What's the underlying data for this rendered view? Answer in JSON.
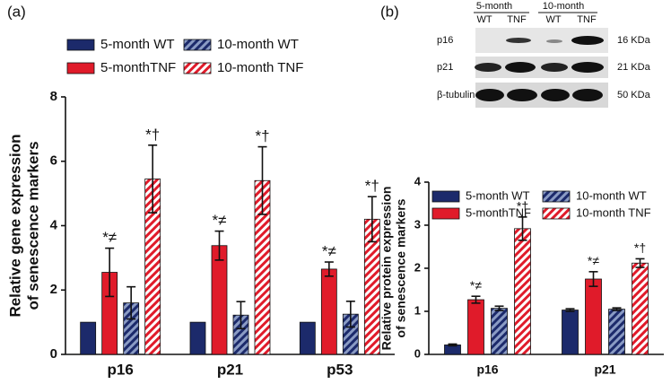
{
  "panel_labels": [
    "(a)",
    "(b)"
  ],
  "blot": {
    "groups": [
      "5-month",
      "10-month"
    ],
    "lanes": [
      "WT",
      "TNF",
      "WT",
      "TNF"
    ],
    "rows": [
      "p16",
      "p21",
      "β-tubulin"
    ],
    "sizes": [
      "16 KDa",
      "21 KDa",
      "50 KDa"
    ]
  },
  "chart_data": [
    {
      "type": "bar",
      "ylabel": [
        "Relative gene expression",
        "of senescence markers"
      ],
      "categories": [
        "p16",
        "p21",
        "p53"
      ],
      "ylim": [
        0,
        8
      ],
      "yticks": [
        0,
        2,
        4,
        6,
        8
      ],
      "series": [
        {
          "name": "5-month WT",
          "color": "#1c2a6b",
          "hatch": false,
          "values": [
            1,
            1,
            1
          ]
        },
        {
          "name": "5-monthTNF",
          "color": "#e01b2a",
          "hatch": false,
          "values": [
            2.55,
            3.38,
            2.65
          ],
          "errors": [
            0.75,
            0.45,
            0.22
          ],
          "annotations": [
            "*≠",
            "*≠",
            "*≠"
          ]
        },
        {
          "name": "10-month WT",
          "color": "#1c2a6b",
          "hatch": true,
          "values": [
            1.6,
            1.22,
            1.25
          ],
          "errors": [
            0.5,
            0.42,
            0.4
          ]
        },
        {
          "name": "10-month TNF",
          "color": "#e01b2a",
          "hatch": true,
          "values": [
            5.45,
            5.4,
            4.2
          ],
          "errors": [
            1.05,
            1.05,
            0.7
          ],
          "annotations": [
            "*†",
            "*†",
            "*†"
          ]
        }
      ]
    },
    {
      "type": "bar",
      "ylabel": [
        "Relative protein expression",
        "of senescence markers"
      ],
      "categories": [
        "p16",
        "p21"
      ],
      "ylim": [
        0,
        4
      ],
      "yticks": [
        0,
        1,
        2,
        3,
        4
      ],
      "series": [
        {
          "name": "5-month WT",
          "color": "#1c2a6b",
          "hatch": false,
          "values": [
            0.22,
            1.03
          ],
          "errors": [
            0.02,
            0.03
          ]
        },
        {
          "name": "5-monthTNF",
          "color": "#e01b2a",
          "hatch": false,
          "values": [
            1.27,
            1.75
          ],
          "errors": [
            0.08,
            0.17
          ],
          "annotations": [
            "*≠",
            "*≠"
          ]
        },
        {
          "name": "10-month WT",
          "color": "#1c2a6b",
          "hatch": true,
          "values": [
            1.07,
            1.05
          ],
          "errors": [
            0.05,
            0.03
          ]
        },
        {
          "name": "10-month TNF",
          "color": "#e01b2a",
          "hatch": true,
          "values": [
            2.92,
            2.12
          ],
          "errors": [
            0.27,
            0.1
          ],
          "annotations": [
            "*†",
            "*†"
          ]
        }
      ]
    }
  ]
}
